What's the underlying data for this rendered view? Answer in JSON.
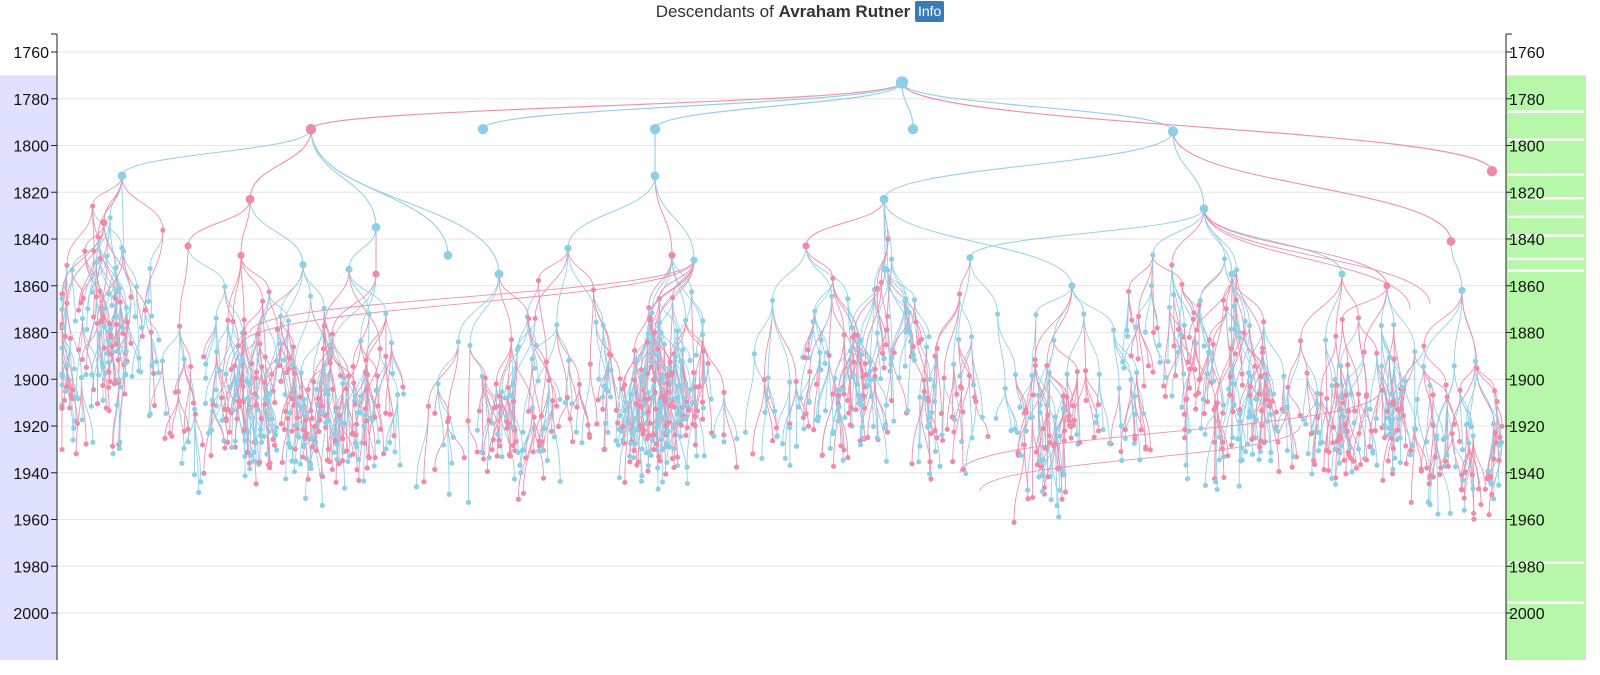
{
  "header": {
    "prefix": "Descendants of ",
    "person_name": "Avraham Rutner",
    "info_button": "Info"
  },
  "colors": {
    "male": "#8ecfe8",
    "female": "#f08aaa",
    "grid": "#e6e6e6",
    "left_band": "#e0e0ff",
    "right_band": "#b6f7a9",
    "axis": "#222222"
  },
  "chart_data": {
    "type": "tree",
    "title": "Descendants of Avraham Rutner",
    "ylim": [
      1755,
      2020
    ],
    "y_ticks": [
      1760,
      1780,
      1800,
      1820,
      1840,
      1860,
      1880,
      1900,
      1920,
      1940,
      1960,
      1980,
      2000
    ],
    "left_axis_labels": [
      "1760",
      "1780",
      "1800",
      "1820",
      "1840",
      "1860",
      "1880",
      "1900",
      "1920",
      "1940",
      "1960",
      "1980",
      "2000"
    ],
    "right_axis_labels": [
      "1760",
      "1780",
      "1800",
      "1820",
      "1840",
      "1860",
      "1880",
      "1900",
      "1920",
      "1940",
      "1960",
      "1980",
      "2000"
    ],
    "axis_ranges": {
      "left_band_from_year": 1770,
      "right_band_from_year": 1770
    },
    "root": {
      "year": 1773,
      "sex": "male"
    },
    "generation_1": [
      {
        "year": 1793,
        "sex": "female"
      },
      {
        "year": 1793,
        "sex": "male"
      },
      {
        "year": 1793,
        "sex": "male"
      },
      {
        "year": 1793,
        "sex": "male"
      },
      {
        "year": 1794,
        "sex": "male"
      },
      {
        "year": 1811,
        "sex": "female"
      }
    ],
    "generation_2": [
      {
        "parent": 0,
        "year": 1813,
        "sex": "male"
      },
      {
        "parent": 0,
        "year": 1823,
        "sex": "female"
      },
      {
        "parent": 0,
        "year": 1835,
        "sex": "male"
      },
      {
        "parent": 0,
        "year": 1847,
        "sex": "male"
      },
      {
        "parent": 0,
        "year": 1855,
        "sex": "male"
      },
      {
        "parent": 2,
        "year": 1813,
        "sex": "male"
      },
      {
        "parent": 4,
        "year": 1823,
        "sex": "male"
      },
      {
        "parent": 4,
        "year": 1827,
        "sex": "male"
      },
      {
        "parent": 4,
        "year": 1841,
        "sex": "female"
      }
    ],
    "generation_3": [
      {
        "parent": 0,
        "year": 1833,
        "sex": "female"
      },
      {
        "parent": 1,
        "year": 1843,
        "sex": "female"
      },
      {
        "parent": 1,
        "year": 1847,
        "sex": "female"
      },
      {
        "parent": 1,
        "year": 1851,
        "sex": "male"
      },
      {
        "parent": 2,
        "year": 1853,
        "sex": "male"
      },
      {
        "parent": 2,
        "year": 1855,
        "sex": "female"
      },
      {
        "parent": 5,
        "year": 1844,
        "sex": "male"
      },
      {
        "parent": 5,
        "year": 1847,
        "sex": "female"
      },
      {
        "parent": 5,
        "year": 1849,
        "sex": "male"
      },
      {
        "parent": 6,
        "year": 1843,
        "sex": "female"
      },
      {
        "parent": 6,
        "year": 1853,
        "sex": "male"
      },
      {
        "parent": 6,
        "year": 1860,
        "sex": "male"
      },
      {
        "parent": 7,
        "year": 1848,
        "sex": "male"
      },
      {
        "parent": 7,
        "year": 1855,
        "sex": "male"
      },
      {
        "parent": 7,
        "year": 1855,
        "sex": "male"
      },
      {
        "parent": 7,
        "year": 1860,
        "sex": "female"
      },
      {
        "parent": 8,
        "year": 1862,
        "sex": "male"
      }
    ],
    "legend": "none",
    "grid": true
  }
}
